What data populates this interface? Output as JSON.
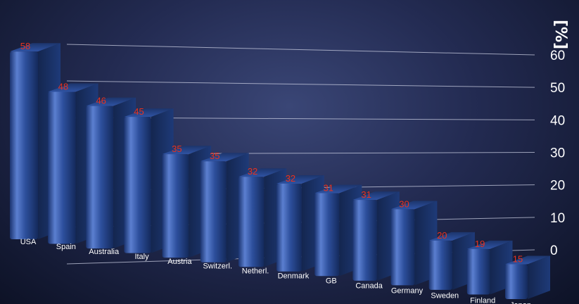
{
  "chart_data": {
    "type": "bar",
    "ylabel": "[%]",
    "ylim": [
      0,
      60
    ],
    "yticks": [
      0,
      10,
      20,
      30,
      40,
      50,
      60
    ],
    "grid": true,
    "categories": [
      "USA",
      "Spain",
      "Australia",
      "Italy",
      "Austria",
      "Switzerl.",
      "Netherl.",
      "Denmark",
      "GB",
      "Canada",
      "Germany",
      "Sweden",
      "Finland",
      "Japan"
    ],
    "values": [
      58,
      48,
      46,
      45,
      35,
      35,
      32,
      32,
      31,
      31,
      30,
      20,
      19,
      15
    ],
    "colors": {
      "bar": "#2d4f9c",
      "bar_highlight": "#5b7fd0",
      "bar_shadow": "#14264f",
      "value_label": "#e8321f",
      "axis_text": "#ffffff",
      "grid": "#c8cce0"
    }
  }
}
